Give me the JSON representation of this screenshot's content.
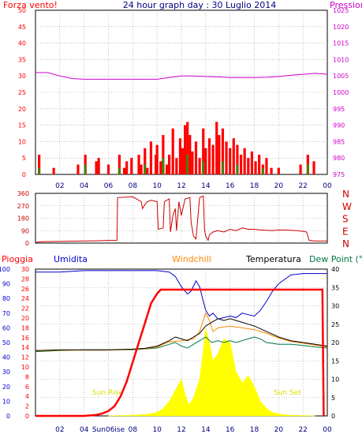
{
  "header": {
    "left_label": "Forza vento!",
    "title": "24 hour graph day : 30 Luglio 2014",
    "right_label": "Pressione"
  },
  "colors": {
    "wind": "#ff0000",
    "wind_alt": "#00aa00",
    "pressure": "#cc00cc",
    "direction": "#cc0000",
    "rain": "#ff0000",
    "humidity": "#0000cc",
    "windchill": "#ff8800",
    "temperature": "#000000",
    "dewpoint": "#007744",
    "solar": "#ffff00",
    "sunlabel": "#dddd00",
    "grid": "#999999",
    "axis_blue": "#000080"
  },
  "chart_data": [
    {
      "type": "bar",
      "name": "wind-pressure",
      "x_ticks": [
        "02",
        "04",
        "06",
        "08",
        "10",
        "12",
        "14",
        "16",
        "18",
        "20",
        "22",
        "00"
      ],
      "y_left_ticks": [
        0,
        5,
        10,
        15,
        20,
        25,
        30,
        35,
        40,
        45,
        50
      ],
      "y_left_range": [
        0,
        50
      ],
      "y_right_ticks": [
        975,
        980,
        985,
        990,
        995,
        1000,
        1005,
        1010,
        1015,
        1020,
        1025
      ],
      "y_right_range": [
        975,
        1025
      ],
      "wind_series": [
        [
          0.3,
          6
        ],
        [
          1.5,
          2
        ],
        [
          3.5,
          3
        ],
        [
          4.1,
          6
        ],
        [
          5.0,
          4
        ],
        [
          5.2,
          5
        ],
        [
          6.0,
          3
        ],
        [
          6.9,
          6
        ],
        [
          7.3,
          2
        ],
        [
          7.5,
          4
        ],
        [
          7.9,
          5
        ],
        [
          8.5,
          6
        ],
        [
          8.7,
          3
        ],
        [
          9.0,
          8
        ],
        [
          9.2,
          2
        ],
        [
          9.5,
          10
        ],
        [
          9.9,
          6
        ],
        [
          10.0,
          9
        ],
        [
          10.3,
          4
        ],
        [
          10.5,
          12
        ],
        [
          10.8,
          3
        ],
        [
          11.0,
          6
        ],
        [
          11.3,
          14
        ],
        [
          11.6,
          5
        ],
        [
          11.9,
          11
        ],
        [
          12.1,
          8
        ],
        [
          12.3,
          15
        ],
        [
          12.5,
          16
        ],
        [
          12.7,
          12
        ],
        [
          12.9,
          7
        ],
        [
          13.2,
          10
        ],
        [
          13.5,
          5
        ],
        [
          13.8,
          14
        ],
        [
          14.0,
          8
        ],
        [
          14.3,
          11
        ],
        [
          14.6,
          9
        ],
        [
          14.9,
          16
        ],
        [
          15.1,
          12
        ],
        [
          15.4,
          14
        ],
        [
          15.7,
          10
        ],
        [
          16.0,
          8
        ],
        [
          16.3,
          11
        ],
        [
          16.6,
          9
        ],
        [
          16.9,
          6
        ],
        [
          17.2,
          8
        ],
        [
          17.5,
          5
        ],
        [
          17.8,
          7
        ],
        [
          18.1,
          4
        ],
        [
          18.4,
          6
        ],
        [
          18.7,
          3
        ],
        [
          19.0,
          5
        ],
        [
          19.4,
          2
        ],
        [
          20.0,
          2
        ],
        [
          21.8,
          3
        ],
        [
          22.4,
          6
        ],
        [
          22.9,
          4
        ]
      ],
      "wind_alt_series": [
        [
          0.3,
          2
        ],
        [
          4.1,
          3
        ],
        [
          6.9,
          2
        ],
        [
          9.0,
          3
        ],
        [
          10.5,
          5
        ],
        [
          12.5,
          6
        ],
        [
          13.8,
          4
        ],
        [
          15.4,
          4
        ],
        [
          16.6,
          3
        ],
        [
          18.7,
          2
        ],
        [
          22.4,
          3
        ]
      ],
      "pressure_series": [
        [
          0.0,
          1006
        ],
        [
          1.0,
          1006
        ],
        [
          2.0,
          1005
        ],
        [
          3.0,
          1004.2
        ],
        [
          4.0,
          1004
        ],
        [
          5.0,
          1004
        ],
        [
          6.0,
          1004
        ],
        [
          7.0,
          1004
        ],
        [
          8.0,
          1004
        ],
        [
          9.0,
          1004
        ],
        [
          10.0,
          1004
        ],
        [
          11.0,
          1004.5
        ],
        [
          12.0,
          1005
        ],
        [
          13.0,
          1005
        ],
        [
          14.0,
          1004.8
        ],
        [
          15.0,
          1004.7
        ],
        [
          16.0,
          1004.5
        ],
        [
          17.0,
          1004.5
        ],
        [
          18.0,
          1004.5
        ],
        [
          19.0,
          1004.6
        ],
        [
          20.0,
          1004.8
        ],
        [
          21.0,
          1005.2
        ],
        [
          22.0,
          1005.5
        ],
        [
          23.0,
          1005.8
        ],
        [
          24.0,
          1005.5
        ]
      ]
    },
    {
      "type": "line",
      "name": "wind-direction",
      "y_ticks": [
        0,
        90,
        180,
        270,
        360
      ],
      "y_range": [
        0,
        360
      ],
      "compass_labels": [
        "N",
        "W",
        "S",
        "E",
        "N"
      ],
      "series": [
        [
          0.0,
          5
        ],
        [
          0.5,
          10
        ],
        [
          2.0,
          12
        ],
        [
          4.0,
          15
        ],
        [
          5.5,
          18
        ],
        [
          6.7,
          20
        ],
        [
          6.75,
          330
        ],
        [
          8.0,
          335
        ],
        [
          8.7,
          300
        ],
        [
          8.8,
          250
        ],
        [
          9.0,
          280
        ],
        [
          9.2,
          300
        ],
        [
          9.5,
          310
        ],
        [
          10.0,
          300
        ],
        [
          10.1,
          100
        ],
        [
          10.5,
          110
        ],
        [
          10.6,
          300
        ],
        [
          11.0,
          320
        ],
        [
          11.1,
          80
        ],
        [
          11.3,
          200
        ],
        [
          11.5,
          250
        ],
        [
          11.6,
          90
        ],
        [
          11.8,
          300
        ],
        [
          12.0,
          200
        ],
        [
          12.3,
          320
        ],
        [
          12.7,
          330
        ],
        [
          12.8,
          150
        ],
        [
          13.0,
          50
        ],
        [
          13.2,
          30
        ],
        [
          13.5,
          330
        ],
        [
          13.8,
          340
        ],
        [
          13.9,
          100
        ],
        [
          14.0,
          50
        ],
        [
          14.2,
          20
        ],
        [
          14.3,
          60
        ],
        [
          14.6,
          80
        ],
        [
          15.0,
          90
        ],
        [
          15.5,
          80
        ],
        [
          16.0,
          100
        ],
        [
          16.5,
          90
        ],
        [
          17.0,
          110
        ],
        [
          17.5,
          100
        ],
        [
          18.0,
          100
        ],
        [
          18.5,
          95
        ],
        [
          19.5,
          90
        ],
        [
          20.0,
          95
        ],
        [
          20.5,
          95
        ],
        [
          21.5,
          90
        ],
        [
          22.0,
          85
        ],
        [
          22.3,
          80
        ],
        [
          22.5,
          20
        ],
        [
          23.0,
          15
        ],
        [
          24.0,
          15
        ]
      ]
    },
    {
      "type": "line",
      "name": "rain-humidity-temperature",
      "labels": {
        "rain": "Pioggia",
        "humidity": "Umidita",
        "windchill": "Windchill",
        "temperature": "Temperatura",
        "dewpoint": "Dew Point (°C"
      },
      "sunrise_label": "Sun Rise",
      "sunset_label": "Sun Set",
      "x_ticks": [
        "02",
        "04",
        "06",
        "08",
        "10",
        "12",
        "14",
        "16",
        "18",
        "20",
        "22",
        "00"
      ],
      "x_ticks_under_sun": [
        "Sun06ise"
      ],
      "y_humidity_ticks": [
        0,
        10,
        20,
        30,
        40,
        50,
        60,
        70,
        80,
        90,
        100
      ],
      "y_humidity_range": [
        0,
        100
      ],
      "y_rain_ticks": [
        0,
        2,
        4,
        6,
        8,
        10,
        12,
        14,
        16,
        18,
        20,
        22,
        24,
        26,
        28,
        30
      ],
      "y_rain_range": [
        0,
        30
      ],
      "y_temp_ticks": [
        0,
        5,
        10,
        15,
        20,
        25,
        30,
        35,
        40
      ],
      "y_temp_range": [
        0,
        40
      ],
      "rain": [
        [
          0.0,
          0
        ],
        [
          4.0,
          0
        ],
        [
          5.0,
          0.2
        ],
        [
          5.5,
          0.5
        ],
        [
          6.0,
          1.0
        ],
        [
          6.5,
          2.0
        ],
        [
          7.0,
          4.0
        ],
        [
          7.5,
          7.0
        ],
        [
          8.0,
          11.0
        ],
        [
          8.5,
          15.0
        ],
        [
          9.0,
          19.0
        ],
        [
          9.5,
          23.0
        ],
        [
          10.0,
          25.0
        ],
        [
          10.3,
          25.8
        ],
        [
          11.0,
          25.8
        ],
        [
          14.0,
          25.8
        ],
        [
          16.0,
          25.8
        ],
        [
          18.0,
          25.8
        ],
        [
          20.0,
          25.8
        ],
        [
          22.0,
          25.8
        ],
        [
          23.6,
          25.8
        ],
        [
          23.7,
          0
        ]
      ],
      "humidity": [
        [
          0.0,
          98
        ],
        [
          2.0,
          98
        ],
        [
          4.0,
          99
        ],
        [
          6.0,
          99
        ],
        [
          8.0,
          99
        ],
        [
          10.0,
          99
        ],
        [
          11.0,
          98
        ],
        [
          11.5,
          95
        ],
        [
          12.0,
          88
        ],
        [
          12.5,
          83
        ],
        [
          12.8,
          85
        ],
        [
          13.2,
          92
        ],
        [
          13.5,
          88
        ],
        [
          13.8,
          78
        ],
        [
          14.0,
          72
        ],
        [
          14.3,
          68
        ],
        [
          14.6,
          70
        ],
        [
          15.0,
          66
        ],
        [
          15.5,
          67
        ],
        [
          16.0,
          68
        ],
        [
          16.5,
          67
        ],
        [
          17.0,
          70
        ],
        [
          17.5,
          69
        ],
        [
          18.0,
          68
        ],
        [
          18.5,
          72
        ],
        [
          19.0,
          78
        ],
        [
          19.5,
          85
        ],
        [
          20.0,
          90
        ],
        [
          20.5,
          93
        ],
        [
          21.0,
          96
        ],
        [
          22.0,
          97
        ],
        [
          23.0,
          97
        ],
        [
          24.0,
          97
        ]
      ],
      "temperature": [
        [
          0.0,
          17.8
        ],
        [
          2.0,
          18.0
        ],
        [
          4.0,
          18.0
        ],
        [
          6.0,
          18.0
        ],
        [
          8.0,
          18.2
        ],
        [
          9.0,
          18.4
        ],
        [
          10.0,
          19.0
        ],
        [
          11.0,
          20.5
        ],
        [
          11.5,
          21.5
        ],
        [
          12.0,
          21.0
        ],
        [
          12.5,
          20.5
        ],
        [
          13.0,
          21.5
        ],
        [
          13.5,
          22.5
        ],
        [
          14.0,
          24.5
        ],
        [
          14.5,
          25.5
        ],
        [
          15.0,
          26.5
        ],
        [
          15.5,
          26.0
        ],
        [
          16.0,
          26.5
        ],
        [
          16.5,
          26.0
        ],
        [
          17.0,
          25.5
        ],
        [
          17.5,
          25.0
        ],
        [
          18.0,
          24.5
        ],
        [
          19.0,
          23.0
        ],
        [
          20.0,
          21.5
        ],
        [
          21.0,
          20.5
        ],
        [
          22.0,
          20.0
        ],
        [
          23.0,
          19.5
        ],
        [
          24.0,
          19.0
        ]
      ],
      "windchill": [
        [
          0.0,
          17.7
        ],
        [
          2.0,
          17.9
        ],
        [
          4.0,
          17.9
        ],
        [
          6.0,
          17.9
        ],
        [
          8.0,
          18.1
        ],
        [
          9.0,
          18.3
        ],
        [
          10.0,
          18.8
        ],
        [
          11.0,
          20.2
        ],
        [
          12.0,
          20.5
        ],
        [
          13.0,
          21.0
        ],
        [
          13.5,
          23.0
        ],
        [
          14.0,
          28.0
        ],
        [
          14.3,
          26.0
        ],
        [
          14.6,
          23.0
        ],
        [
          15.0,
          24.0
        ],
        [
          16.0,
          24.5
        ],
        [
          17.0,
          24.0
        ],
        [
          18.0,
          23.5
        ],
        [
          19.0,
          22.5
        ],
        [
          20.0,
          21.2
        ],
        [
          21.0,
          20.3
        ],
        [
          22.0,
          19.8
        ],
        [
          23.0,
          19.3
        ],
        [
          24.0,
          18.8
        ]
      ],
      "dewpoint": [
        [
          0.0,
          17.5
        ],
        [
          2.0,
          17.8
        ],
        [
          4.0,
          18.0
        ],
        [
          6.0,
          18.0
        ],
        [
          8.0,
          18.0
        ],
        [
          10.0,
          18.5
        ],
        [
          11.0,
          19.5
        ],
        [
          11.5,
          20.0
        ],
        [
          12.0,
          19.0
        ],
        [
          12.5,
          18.5
        ],
        [
          13.0,
          19.5
        ],
        [
          13.5,
          20.5
        ],
        [
          14.0,
          21.5
        ],
        [
          14.5,
          20.0
        ],
        [
          15.0,
          20.5
        ],
        [
          15.5,
          20.0
        ],
        [
          16.0,
          20.5
        ],
        [
          16.5,
          20.0
        ],
        [
          17.0,
          20.5
        ],
        [
          17.5,
          21.0
        ],
        [
          18.0,
          21.5
        ],
        [
          18.5,
          21.0
        ],
        [
          19.0,
          20.0
        ],
        [
          20.0,
          19.5
        ],
        [
          21.0,
          19.5
        ],
        [
          22.0,
          19.2
        ],
        [
          23.0,
          18.8
        ],
        [
          24.0,
          18.5
        ]
      ],
      "solar": [
        [
          6.0,
          0
        ],
        [
          7.0,
          0.1
        ],
        [
          8.0,
          0.2
        ],
        [
          9.0,
          0.4
        ],
        [
          9.5,
          0.6
        ],
        [
          10.0,
          1.0
        ],
        [
          10.5,
          2.0
        ],
        [
          11.0,
          4.0
        ],
        [
          11.5,
          7.0
        ],
        [
          12.0,
          10.0
        ],
        [
          12.3,
          6.0
        ],
        [
          12.6,
          3.0
        ],
        [
          13.0,
          5.0
        ],
        [
          13.5,
          10.0
        ],
        [
          13.8,
          18.0
        ],
        [
          14.0,
          24.0
        ],
        [
          14.3,
          20.0
        ],
        [
          14.6,
          15.0
        ],
        [
          15.0,
          17.0
        ],
        [
          15.5,
          21.0
        ],
        [
          16.0,
          20.0
        ],
        [
          16.5,
          12.0
        ],
        [
          17.0,
          9.0
        ],
        [
          17.5,
          11.0
        ],
        [
          18.0,
          8.0
        ],
        [
          18.5,
          4.0
        ],
        [
          19.0,
          2.0
        ],
        [
          19.5,
          1.0
        ],
        [
          20.0,
          0.5
        ],
        [
          21.0,
          0.2
        ],
        [
          22.0,
          0.1
        ],
        [
          23.0,
          0
        ]
      ]
    }
  ]
}
